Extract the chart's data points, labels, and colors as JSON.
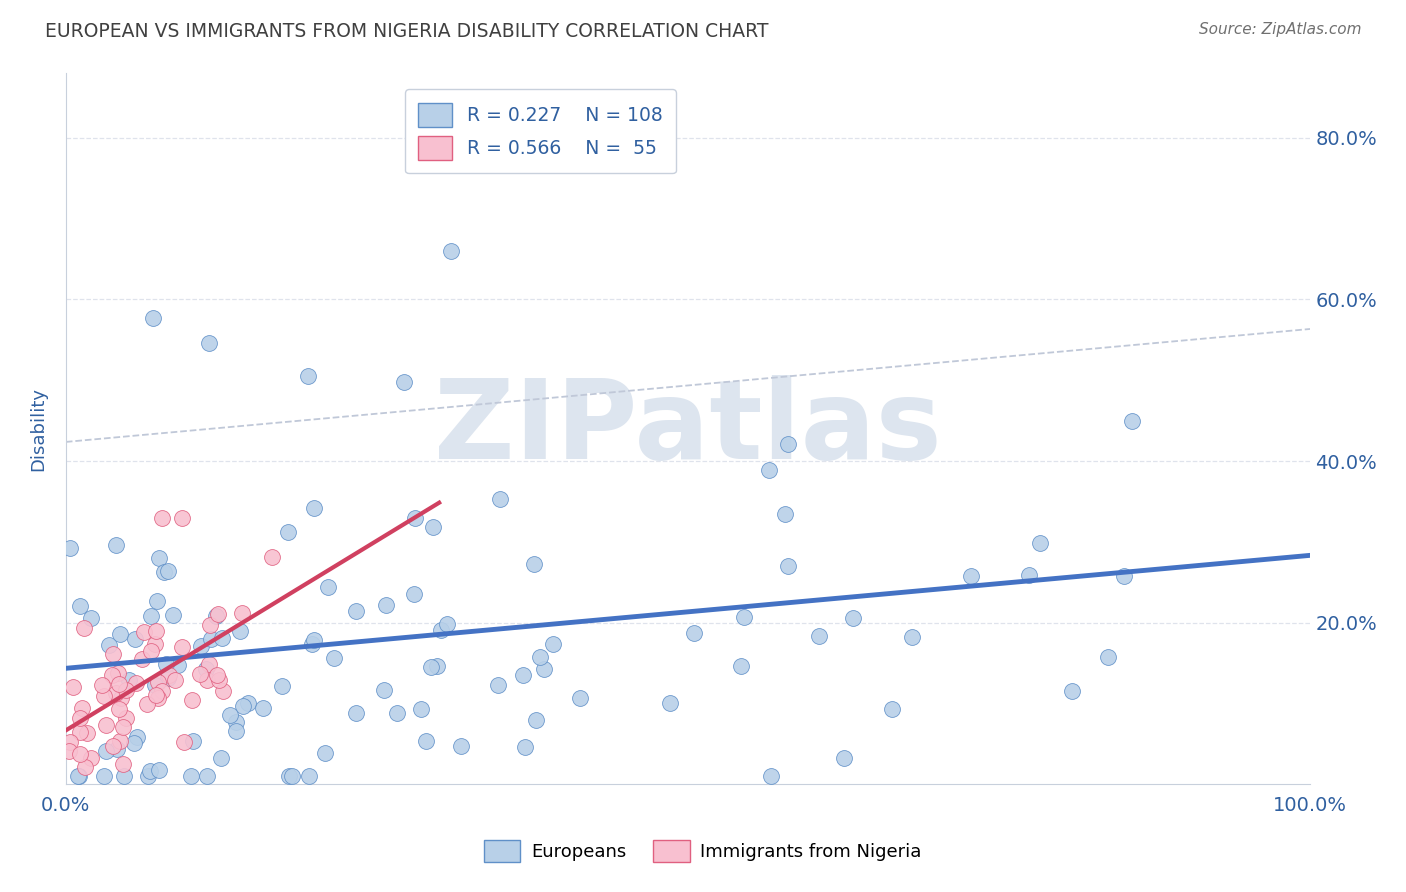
{
  "title": "EUROPEAN VS IMMIGRANTS FROM NIGERIA DISABILITY CORRELATION CHART",
  "source": "Source: ZipAtlas.com",
  "ylabel": "Disability",
  "xlim": [
    0,
    1
  ],
  "ylim": [
    0,
    0.88
  ],
  "xtick_labels": [
    "0.0%",
    "100.0%"
  ],
  "ytick_positions": [
    0.2,
    0.4,
    0.6,
    0.8
  ],
  "ytick_labels": [
    "20.0%",
    "40.0%",
    "60.0%",
    "80.0%"
  ],
  "legend_r_european": "0.227",
  "legend_n_european": "108",
  "legend_r_nigeria": "0.566",
  "legend_n_nigeria": "55",
  "european_color": "#b8d0e8",
  "european_edge_color": "#6090c8",
  "nigeria_color": "#f8c0d0",
  "nigeria_edge_color": "#e06080",
  "european_line_color": "#4472c4",
  "nigeria_line_color": "#d04060",
  "dashed_line_color": "#c0c8d8",
  "watermark_text": "ZIPatlas",
  "watermark_color": "#dde5ef",
  "title_color": "#404040",
  "source_color": "#707070",
  "axis_label_color": "#3060a0",
  "tick_label_color": "#3060a0",
  "background_color": "#ffffff",
  "grid_color": "#d8dde8"
}
